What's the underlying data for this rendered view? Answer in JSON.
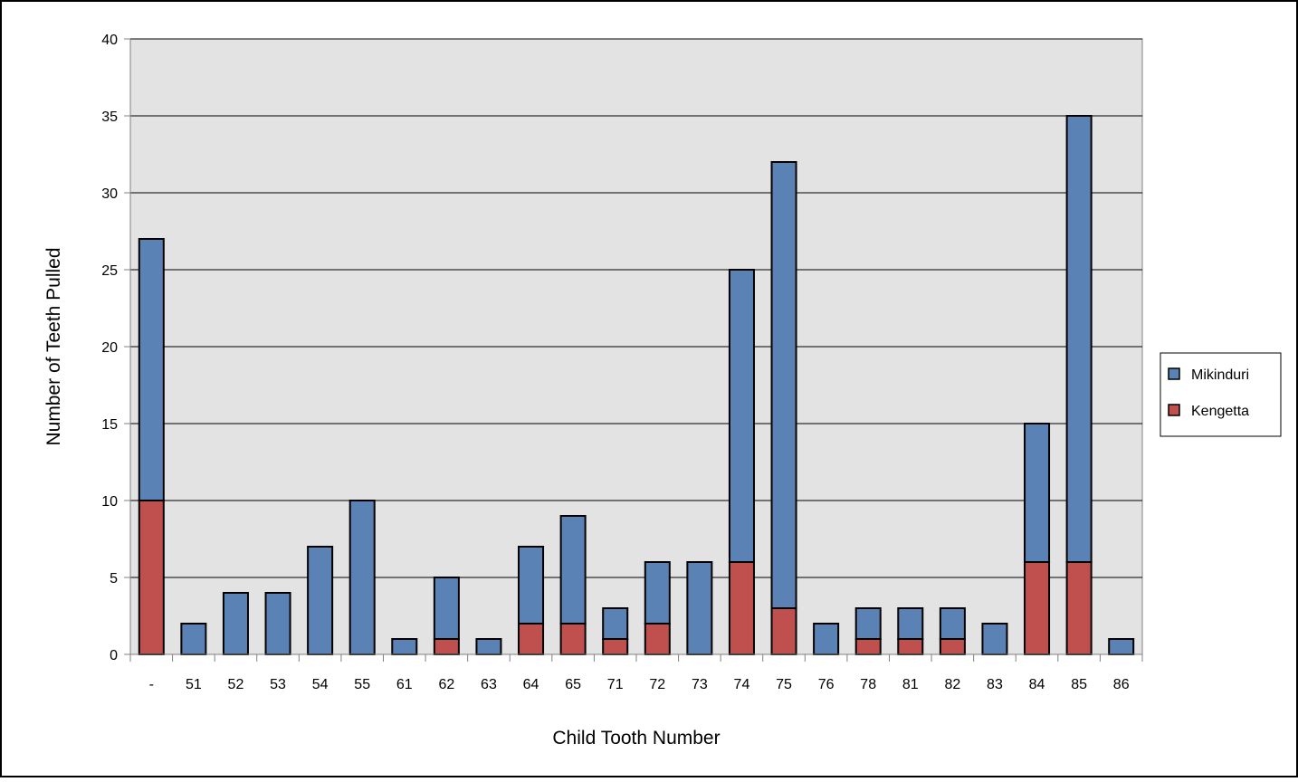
{
  "chart_data": {
    "type": "bar",
    "stacked": true,
    "title": "",
    "xlabel": "Child Tooth Number",
    "ylabel": "Number of Teeth Pulled",
    "ylim": [
      0,
      40
    ],
    "ytick_step": 5,
    "yticks": [
      "0",
      "5",
      "10",
      "15",
      "20",
      "25",
      "30",
      "35",
      "40"
    ],
    "grid": true,
    "legend_position": "right",
    "categories": [
      "-",
      "51",
      "52",
      "53",
      "54",
      "55",
      "61",
      "62",
      "63",
      "64",
      "65",
      "71",
      "72",
      "73",
      "74",
      "75",
      "76",
      "78",
      "81",
      "82",
      "83",
      "84",
      "85",
      "86"
    ],
    "series": [
      {
        "name": "Kengetta",
        "color": "#c0504d",
        "values": [
          10,
          0,
          0,
          0,
          0,
          0,
          0,
          1,
          0,
          2,
          2,
          1,
          2,
          0,
          6,
          3,
          0,
          1,
          1,
          1,
          0,
          6,
          6,
          0
        ]
      },
      {
        "name": "Mikinduri",
        "color": "#5b82b5",
        "values": [
          17,
          2,
          4,
          4,
          7,
          10,
          1,
          4,
          1,
          5,
          7,
          2,
          4,
          6,
          19,
          29,
          2,
          2,
          2,
          2,
          2,
          9,
          29,
          1
        ]
      }
    ],
    "legend_order": [
      "Mikinduri",
      "Kengetta"
    ],
    "plot_background": "#e3e3e3"
  }
}
